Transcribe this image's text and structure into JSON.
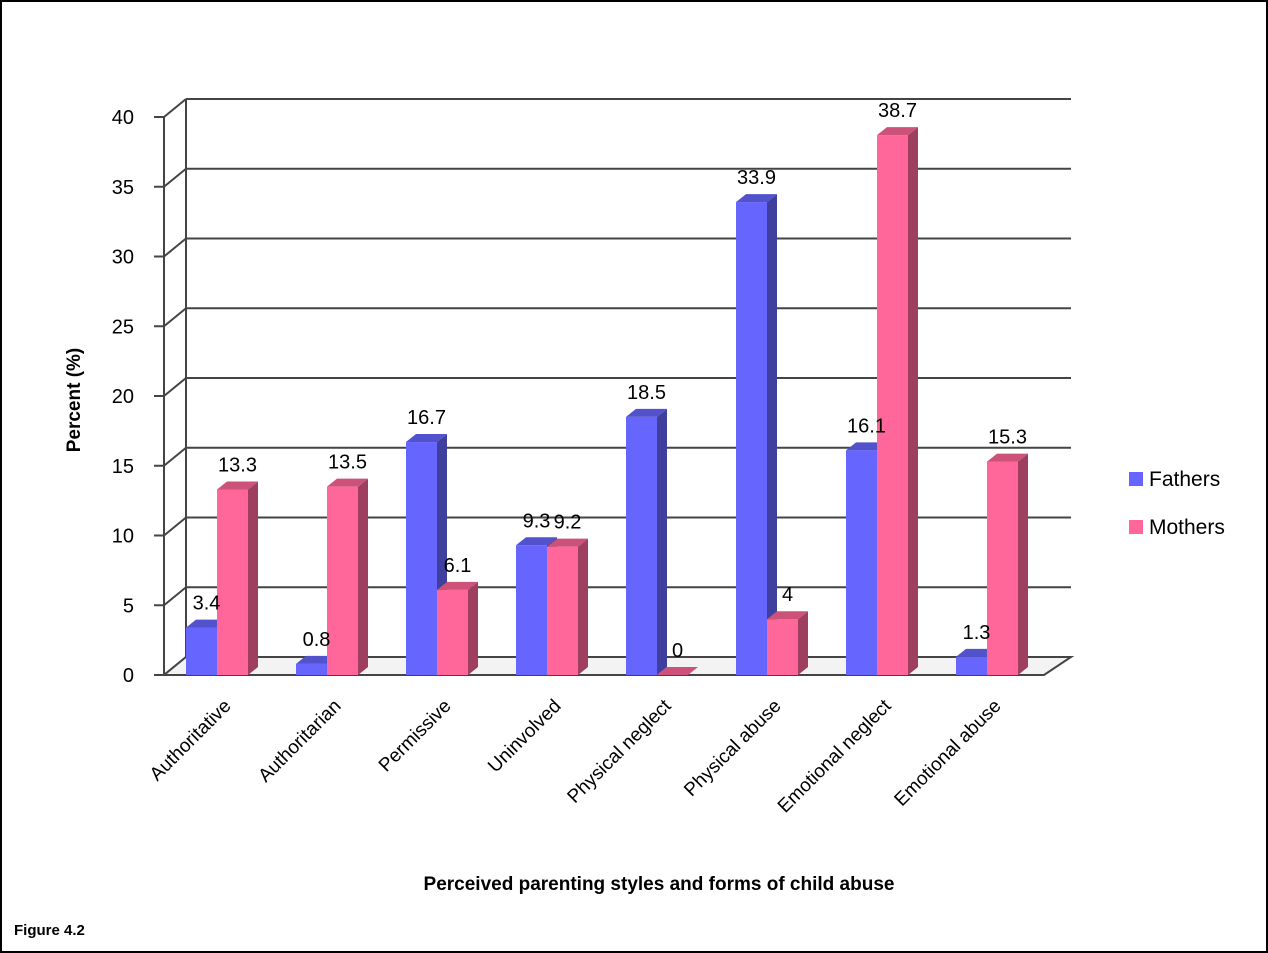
{
  "figure_caption": "Figure 4.2",
  "chart_data": {
    "type": "bar",
    "style": "3d-clustered-column",
    "title": "",
    "xlabel": "Perceived parenting styles and forms of child abuse",
    "ylabel": "Percent (%)",
    "ylim": [
      0,
      40
    ],
    "yticks": [
      0,
      5,
      10,
      15,
      20,
      25,
      30,
      35,
      40
    ],
    "grid": true,
    "legend_position": "right",
    "categories": [
      "Authoritative",
      "Authoritarian",
      "Permissive",
      "Uninvolved",
      "Physical neglect",
      "Physical abuse",
      "Emotional neglect",
      "Emotional abuse"
    ],
    "series": [
      {
        "name": "Fathers",
        "color": "#6666ff",
        "values": [
          3.4,
          0.8,
          16.7,
          9.3,
          18.5,
          33.9,
          16.1,
          1.3
        ]
      },
      {
        "name": "Mothers",
        "color": "#ff6699",
        "values": [
          13.3,
          13.5,
          6.1,
          9.2,
          0,
          4,
          38.7,
          15.3
        ]
      }
    ]
  }
}
